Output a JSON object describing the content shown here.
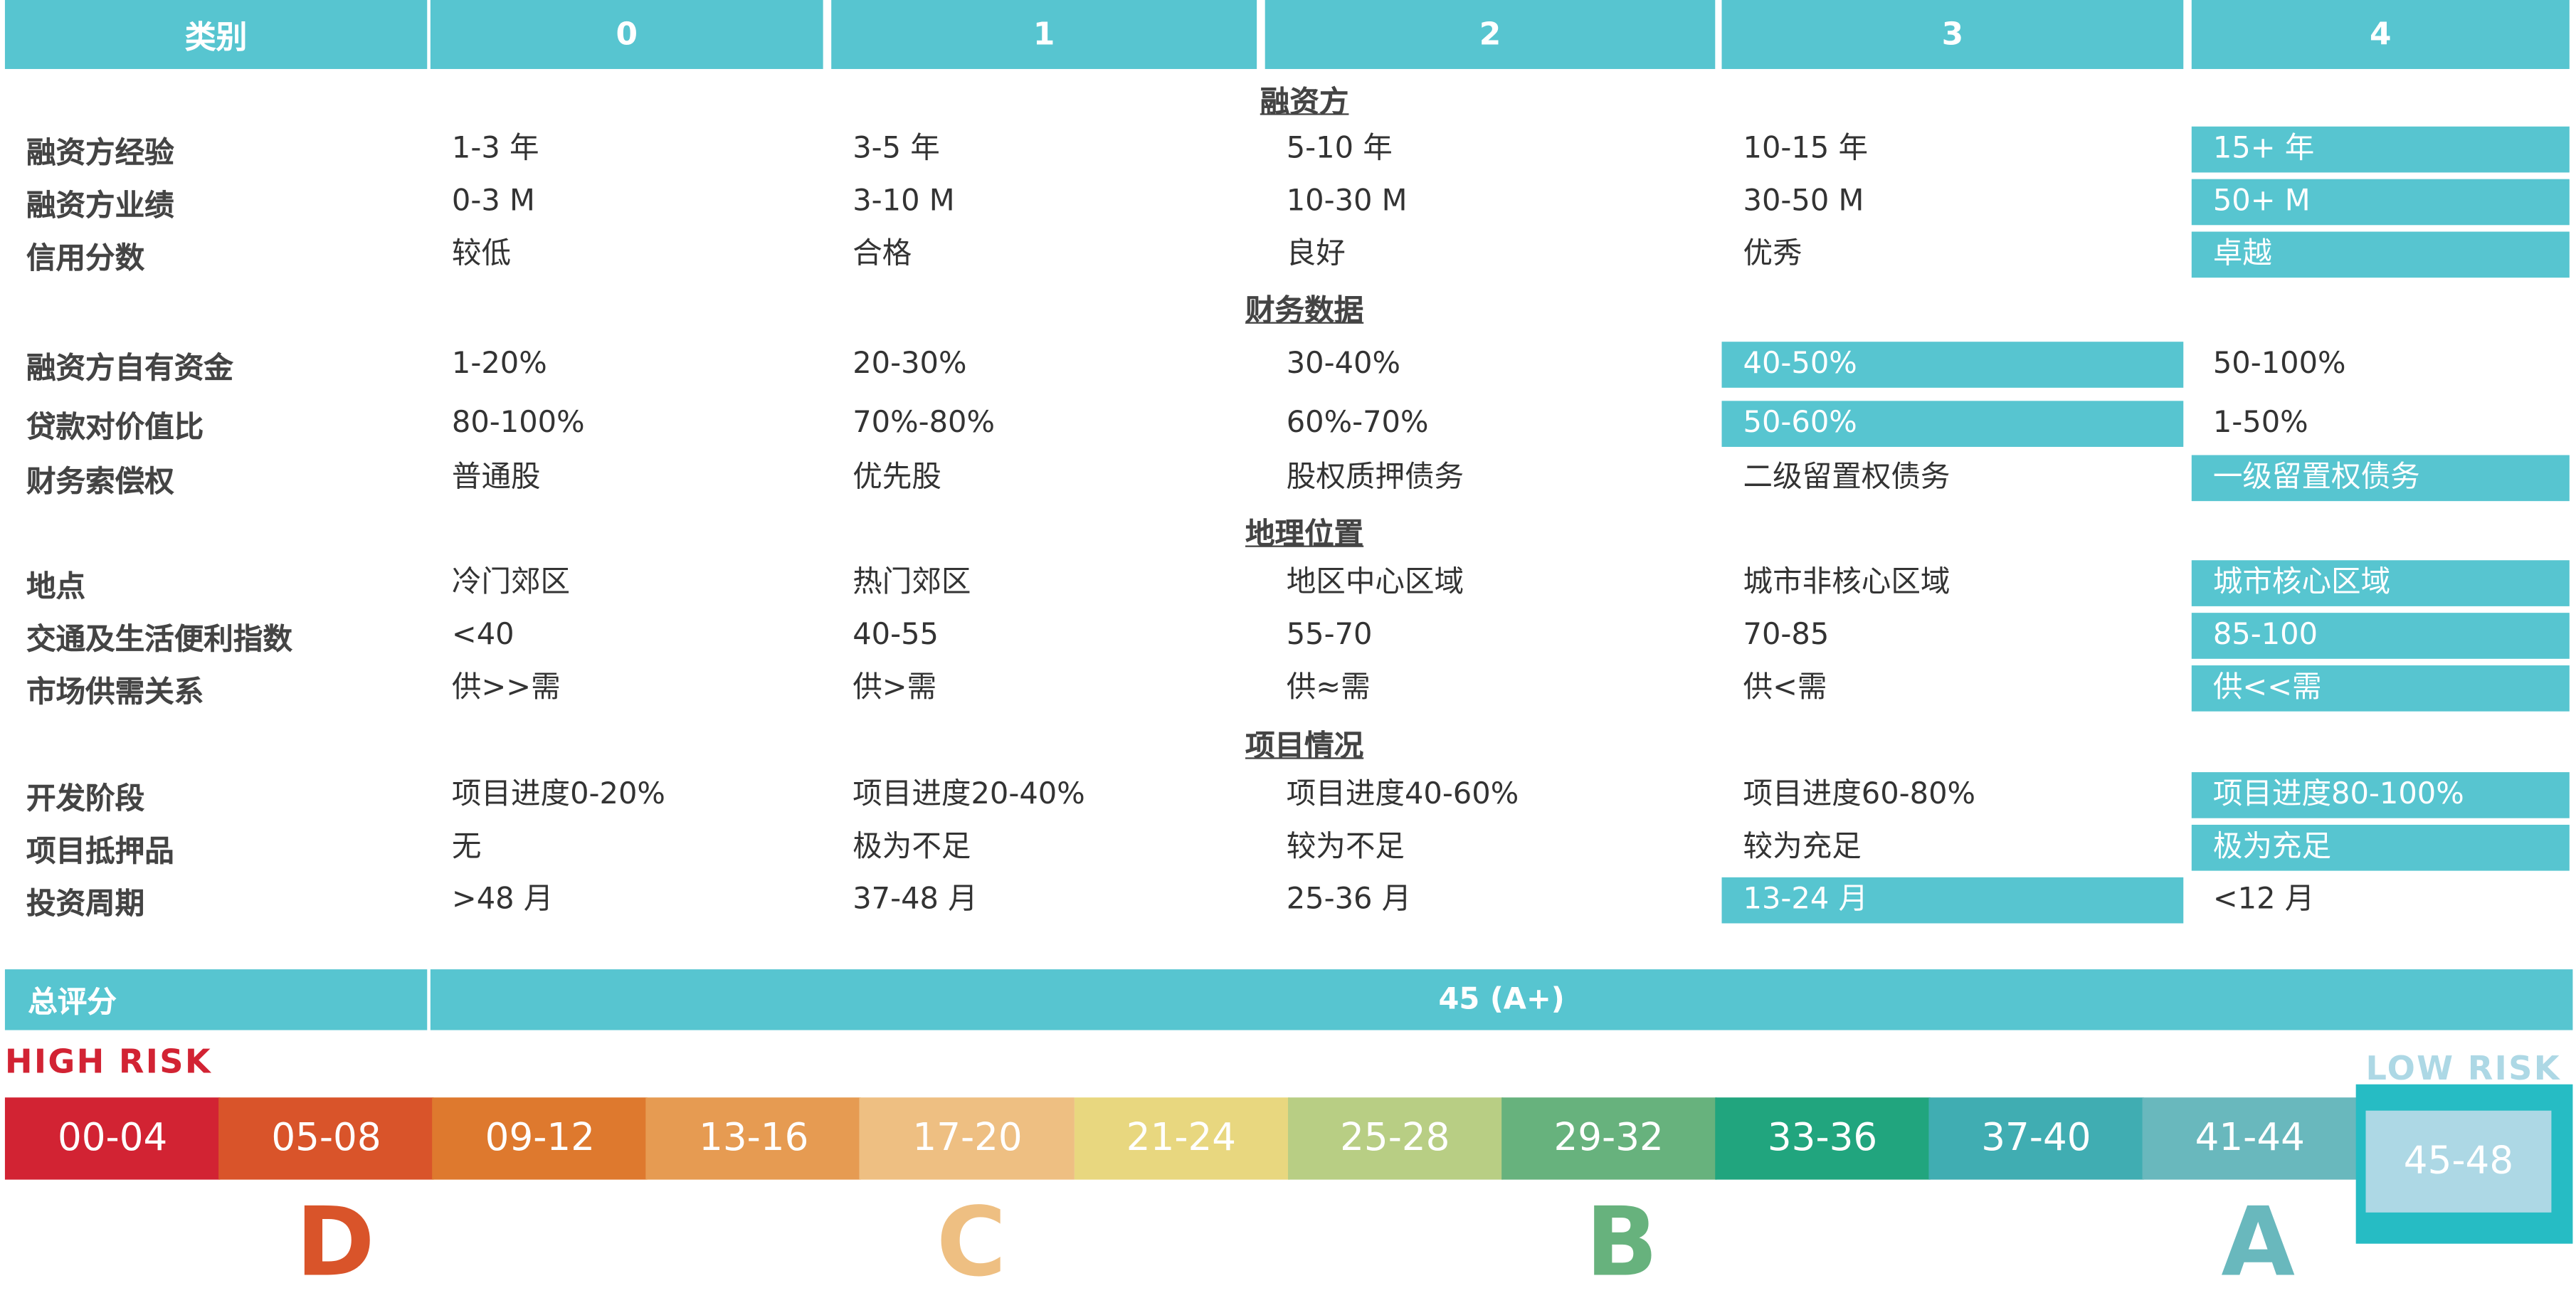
{
  "header": {
    "category": "类别",
    "columns": [
      "0",
      "1",
      "2",
      "3",
      "4"
    ]
  },
  "sections": [
    {
      "title": "融资方",
      "rows": [
        {
          "label": "融资方经验",
          "values": [
            "1-3 年",
            "3-5 年",
            "5-10 年",
            "10-15 年",
            "15+ 年"
          ],
          "selected": 4
        },
        {
          "label": "融资方业绩",
          "values": [
            "0-3 M",
            "3-10 M",
            "10-30 M",
            "30-50 M",
            "50+ M"
          ],
          "selected": 4
        },
        {
          "label": "信用分数",
          "values": [
            "较低",
            "合格",
            "良好",
            "优秀",
            "卓越"
          ],
          "selected": 4
        }
      ]
    },
    {
      "title": "财务数据",
      "rows": [
        {
          "label": "融资方自有资金",
          "values": [
            "1-20%",
            "20-30%",
            "30-40%",
            "40-50%",
            "50-100%"
          ],
          "selected": 3
        },
        {
          "label": "贷款对价值比",
          "values": [
            "80-100%",
            "70%-80%",
            "60%-70%",
            "50-60%",
            "1-50%"
          ],
          "selected": 3
        },
        {
          "label": "财务索偿权",
          "values": [
            "普通股",
            "优先股",
            "股权质押债务",
            "二级留置权债务",
            "一级留置权债务"
          ],
          "selected": 4
        }
      ]
    },
    {
      "title": "地理位置",
      "rows": [
        {
          "label": "地点",
          "values": [
            "冷门郊区",
            "热门郊区",
            "地区中心区域",
            "城市非核心区域",
            "城市核心区域"
          ],
          "selected": 4
        },
        {
          "label": "交通及生活便利指数",
          "values": [
            "<40",
            "40-55",
            "55-70",
            "70-85",
            "85-100"
          ],
          "selected": 4
        },
        {
          "label": "市场供需关系",
          "values": [
            "供>>需",
            "供>需",
            "供≈需",
            "供<需",
            "供<<需"
          ],
          "selected": 4
        }
      ]
    },
    {
      "title": "项目情况",
      "rows": [
        {
          "label": "开发阶段",
          "values": [
            "项目进度0-20%",
            "项目进度20-40%",
            "项目进度40-60%",
            "项目进度60-80%",
            "项目进度80-100%"
          ],
          "selected": 4
        },
        {
          "label": "项目抵押品",
          "values": [
            "无",
            "极为不足",
            "较为不足",
            "较为充足",
            "极为充足"
          ],
          "selected": 4
        },
        {
          "label": "投资周期",
          "values": [
            ">48 月",
            "37-48 月",
            "25-36 月",
            "13-24 月",
            "<12 月"
          ],
          "selected": 3
        }
      ]
    }
  ],
  "total": {
    "label": "总评分",
    "value": "45 (A+)"
  },
  "risk_scale": {
    "high_label": "HIGH RISK",
    "low_label": "LOW RISK",
    "segments": [
      {
        "range": "00-04",
        "color": "#d22333"
      },
      {
        "range": "05-08",
        "color": "#d9542a"
      },
      {
        "range": "09-12",
        "color": "#de792e"
      },
      {
        "range": "13-16",
        "color": "#e69b52"
      },
      {
        "range": "17-20",
        "color": "#eebf82"
      },
      {
        "range": "21-24",
        "color": "#e8d77f"
      },
      {
        "range": "25-28",
        "color": "#b8ce84"
      },
      {
        "range": "29-32",
        "color": "#67b27d"
      },
      {
        "range": "33-36",
        "color": "#21a57e"
      },
      {
        "range": "37-40",
        "color": "#40adb2"
      },
      {
        "range": "41-44",
        "color": "#69b8bd"
      },
      {
        "range": "45-48",
        "color": "#add8e5"
      }
    ],
    "current_segment": "45-48",
    "grades": [
      {
        "letter": "D",
        "color": "#d9542a"
      },
      {
        "letter": "C",
        "color": "#eebf82"
      },
      {
        "letter": "B",
        "color": "#67b27d"
      },
      {
        "letter": "A",
        "color": "#69b8bd"
      }
    ]
  },
  "colors": {
    "accent": "#57c5d0",
    "high_risk": "#d22333",
    "low_risk": "#add8e5",
    "current_frame": "#26bcc4"
  }
}
